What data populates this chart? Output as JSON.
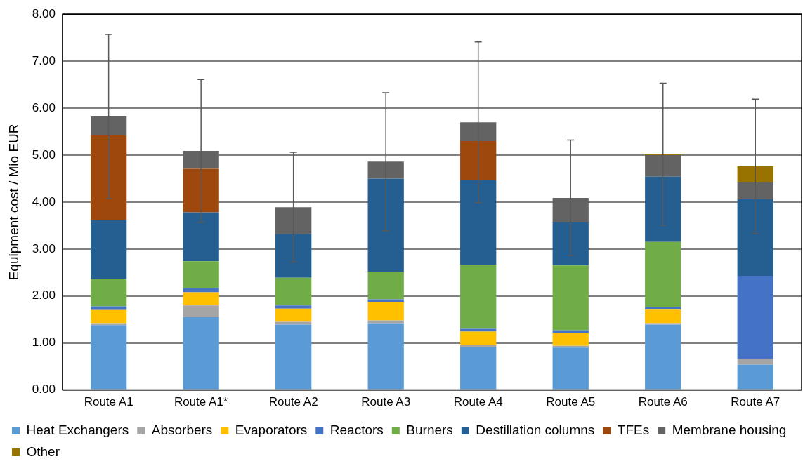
{
  "chart_data": {
    "type": "bar",
    "stacked": true,
    "ylabel": "Equipment cost / Mio EUR",
    "categories": [
      "Route A1",
      "Route A1*",
      "Route A2",
      "Route A3",
      "Route A4",
      "Route A5",
      "Route A6",
      "Route A7"
    ],
    "series": [
      {
        "name": "Heat Exchangers",
        "color": "#5b9bd5",
        "values": [
          1.38,
          1.55,
          1.39,
          1.42,
          0.92,
          0.9,
          1.39,
          0.54
        ]
      },
      {
        "name": "Absorbers",
        "color": "#a5a5a5",
        "values": [
          0.04,
          0.25,
          0.06,
          0.06,
          0.03,
          0.04,
          0.03,
          0.12
        ]
      },
      {
        "name": "Evaporators",
        "color": "#ffc000",
        "values": [
          0.28,
          0.28,
          0.28,
          0.39,
          0.29,
          0.27,
          0.29,
          0
        ]
      },
      {
        "name": "Reactors",
        "color": "#4472c4",
        "values": [
          0.08,
          0.09,
          0.07,
          0.06,
          0.06,
          0.06,
          0.06,
          1.77
        ]
      },
      {
        "name": "Burners",
        "color": "#70ad47",
        "values": [
          0.58,
          0.57,
          0.59,
          0.59,
          1.37,
          1.38,
          1.38,
          0
        ]
      },
      {
        "name": "Destillation columns",
        "color": "#255e91",
        "values": [
          1.26,
          1.04,
          0.93,
          1.98,
          1.79,
          0.92,
          1.39,
          1.63
        ]
      },
      {
        "name": "TFEs",
        "color": "#9e480e",
        "values": [
          1.8,
          0.93,
          0,
          0,
          0.84,
          0,
          0,
          0
        ]
      },
      {
        "name": "Membrane housing",
        "color": "#636363",
        "values": [
          0.4,
          0.38,
          0.57,
          0.36,
          0.4,
          0.52,
          0.46,
          0.36
        ]
      },
      {
        "name": "Other",
        "color": "#997300",
        "values": [
          0,
          0,
          0,
          0,
          0,
          0,
          0.02,
          0.34
        ],
        "errors": [
          1.75,
          1.52,
          1.17,
          1.47,
          1.71,
          1.23,
          1.51,
          1.43
        ]
      }
    ],
    "ylim": [
      0,
      8
    ],
    "yticks": [
      {
        "value": 0,
        "label": "0.00"
      },
      {
        "value": 1,
        "label": "1.00"
      },
      {
        "value": 2,
        "label": "2.00"
      },
      {
        "value": 3,
        "label": "3.00"
      },
      {
        "value": 4,
        "label": "4.00"
      },
      {
        "value": 5,
        "label": "5.00"
      },
      {
        "value": 6,
        "label": "6.00"
      },
      {
        "value": 7,
        "label": "7.00"
      },
      {
        "value": 8,
        "label": "8.00"
      }
    ],
    "grid": "y",
    "legend": "bottom"
  }
}
